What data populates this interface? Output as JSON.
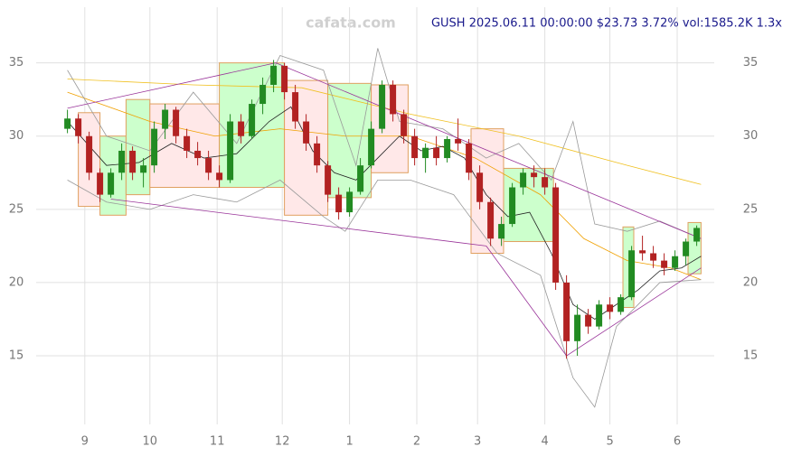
{
  "chart_data": {
    "type": "candlestick",
    "title": "GUSH 2025.06.11 00:00:00 $23.73 3.72% vol:1585.2K 1.3x",
    "watermark": "cafata.com",
    "xlim": [
      -12,
      288
    ],
    "ylim": [
      9.7,
      38.8
    ],
    "yticks": [
      15,
      20,
      25,
      30,
      35
    ],
    "xticks": [
      {
        "value": 0,
        "label": "9"
      },
      {
        "value": 30,
        "label": "10"
      },
      {
        "value": 61,
        "label": "11"
      },
      {
        "value": 91,
        "label": "12"
      },
      {
        "value": 122,
        "label": "1"
      },
      {
        "value": 153,
        "label": "2"
      },
      {
        "value": 181,
        "label": "3"
      },
      {
        "value": 212,
        "label": "4"
      },
      {
        "value": 242,
        "label": "5"
      },
      {
        "value": 273,
        "label": "6"
      }
    ],
    "grid": true,
    "up_color": "#228b22",
    "down_color": "#b22222",
    "candles": {
      "x": [
        -8,
        -3,
        2,
        7,
        12,
        17,
        22,
        27,
        32,
        37,
        42,
        47,
        52,
        57,
        62,
        67,
        72,
        77,
        82,
        87,
        92,
        97,
        102,
        107,
        112,
        117,
        122,
        127,
        132,
        137,
        142,
        147,
        152,
        157,
        162,
        167,
        172,
        177,
        182,
        187,
        192,
        197,
        202,
        207,
        212,
        217,
        222,
        227,
        232,
        237,
        242,
        247,
        252,
        257,
        262,
        267,
        272,
        277,
        282
      ],
      "open": [
        30.5,
        31.2,
        30.0,
        27.5,
        26.0,
        27.5,
        29.0,
        27.5,
        28.0,
        30.5,
        31.8,
        30.0,
        29.0,
        28.5,
        27.5,
        27.0,
        31.0,
        30.0,
        32.2,
        33.5,
        34.8,
        33.0,
        31.0,
        29.5,
        28.0,
        26.0,
        24.8,
        26.2,
        28.0,
        30.5,
        33.5,
        31.5,
        30.0,
        28.5,
        29.2,
        28.5,
        29.8,
        29.5,
        27.5,
        25.5,
        23.0,
        24.0,
        26.5,
        27.5,
        27.2,
        26.5,
        20.0,
        16.0,
        17.8,
        17.0,
        18.5,
        18.0,
        19.0,
        22.2,
        22.0,
        21.5,
        21.0,
        21.8,
        22.8
      ],
      "high": [
        31.8,
        31.5,
        30.3,
        27.8,
        27.8,
        29.5,
        29.3,
        28.5,
        31.0,
        32.2,
        32.0,
        30.5,
        29.6,
        29.0,
        28.0,
        31.5,
        31.5,
        32.5,
        34.0,
        35.2,
        35.0,
        33.5,
        31.5,
        30.0,
        28.3,
        26.5,
        26.5,
        28.5,
        31.0,
        33.8,
        33.8,
        31.8,
        30.5,
        29.5,
        30.0,
        30.0,
        31.2,
        29.8,
        28.0,
        25.8,
        24.5,
        26.8,
        27.8,
        28.0,
        27.8,
        26.8,
        20.5,
        18.5,
        18.2,
        18.8,
        19.0,
        19.2,
        22.5,
        23.2,
        22.5,
        22.0,
        22.2,
        23.0,
        23.9
      ],
      "low": [
        30.2,
        29.5,
        27.0,
        25.5,
        25.8,
        27.0,
        27.0,
        26.5,
        27.5,
        29.8,
        29.5,
        28.5,
        28.0,
        27.0,
        26.5,
        26.8,
        29.5,
        29.8,
        31.5,
        33.0,
        32.5,
        30.5,
        29.0,
        27.5,
        25.5,
        24.3,
        24.5,
        26.0,
        27.8,
        30.2,
        31.0,
        29.5,
        28.0,
        27.5,
        28.0,
        28.2,
        29.0,
        27.0,
        25.0,
        22.5,
        22.5,
        23.8,
        26.0,
        26.5,
        26.0,
        19.5,
        14.8,
        15.0,
        16.5,
        16.8,
        17.5,
        17.8,
        18.8,
        21.5,
        21.0,
        20.5,
        20.8,
        21.2,
        22.5
      ],
      "close": [
        31.2,
        30.0,
        27.5,
        26.0,
        27.5,
        29.0,
        27.5,
        28.0,
        30.5,
        31.8,
        30.0,
        29.0,
        28.5,
        27.5,
        27.0,
        31.0,
        30.0,
        32.2,
        33.5,
        34.8,
        33.0,
        31.0,
        29.5,
        28.0,
        26.0,
        24.8,
        26.2,
        28.0,
        30.5,
        33.5,
        31.5,
        30.0,
        28.5,
        29.2,
        28.5,
        29.8,
        29.5,
        27.5,
        25.5,
        23.0,
        24.0,
        26.5,
        27.5,
        27.2,
        26.5,
        20.0,
        16.0,
        17.8,
        17.0,
        18.5,
        18.0,
        19.0,
        22.2,
        22.0,
        21.5,
        21.0,
        21.8,
        22.8,
        23.73
      ]
    },
    "lines": [
      {
        "color": "#f0c020",
        "x": [
          -8,
          50,
          100,
          150,
          200,
          250,
          284
        ],
        "values": [
          33.9,
          33.5,
          33.3,
          31.5,
          30,
          28,
          26.7
        ]
      },
      {
        "color": "#f0a000",
        "x": [
          -8,
          30,
          60,
          90,
          120,
          150,
          180,
          210,
          230,
          250,
          270,
          284
        ],
        "values": [
          33,
          31,
          30,
          30.5,
          30,
          30,
          28.5,
          26,
          23,
          21.5,
          21,
          20.2
        ]
      },
      {
        "color": "#999999",
        "x": [
          -8,
          10,
          30,
          50,
          70,
          90,
          110,
          125,
          135,
          145,
          165,
          185,
          200,
          215,
          225,
          235,
          250,
          265,
          284
        ],
        "values": [
          34.5,
          30,
          29,
          33,
          29.5,
          35.5,
          34.5,
          28,
          36,
          31,
          30.5,
          28.5,
          29.5,
          27,
          31,
          24,
          23.5,
          24.2,
          23
        ]
      },
      {
        "color": "#999999",
        "x": [
          -8,
          10,
          30,
          50,
          70,
          90,
          110,
          120,
          135,
          150,
          170,
          190,
          210,
          225,
          235,
          245,
          265,
          284
        ],
        "values": [
          27,
          25.5,
          25,
          26,
          25.5,
          27,
          24.5,
          23.5,
          27,
          27,
          26,
          22,
          20.5,
          13.5,
          11.5,
          17,
          20,
          20.2
        ]
      },
      {
        "color": "#222222",
        "x": [
          -8,
          10,
          25,
          40,
          55,
          70,
          85,
          95,
          105,
          115,
          125,
          135,
          145,
          155,
          165,
          175,
          185,
          195,
          205,
          215,
          225,
          235,
          245,
          255,
          265,
          275,
          284
        ],
        "values": [
          31,
          28,
          28.2,
          29.5,
          28.5,
          28.8,
          31,
          32,
          29,
          27.5,
          27,
          28.5,
          30,
          29,
          29.3,
          28.5,
          26,
          24.5,
          24.8,
          22,
          18.5,
          17.5,
          18.5,
          19.5,
          20.8,
          21,
          21.8
        ]
      }
    ],
    "trendlines": [
      {
        "x": [
          -8,
          88
        ],
        "y": [
          31.9,
          35.0
        ]
      },
      {
        "x": [
          88,
          284
        ],
        "y": [
          35.0,
          23.0
        ]
      },
      {
        "x": [
          12,
          185
        ],
        "y": [
          25.7,
          22.5
        ]
      },
      {
        "x": [
          185,
          222
        ],
        "y": [
          22.5,
          15.0
        ]
      },
      {
        "x": [
          222,
          284
        ],
        "y": [
          15.0,
          21.0
        ]
      }
    ],
    "trend_color": "#993399",
    "boxes": [
      {
        "x": [
          -3,
          7
        ],
        "y": [
          25.2,
          31.6
        ],
        "color": "#ffe8e8"
      },
      {
        "x": [
          7,
          19
        ],
        "y": [
          24.6,
          30.0
        ],
        "color": "#ccffcc"
      },
      {
        "x": [
          19,
          30
        ],
        "y": [
          26.0,
          32.5
        ],
        "color": "#ccffcc"
      },
      {
        "x": [
          30,
          62
        ],
        "y": [
          26.5,
          32.2
        ],
        "color": "#ffe8e8"
      },
      {
        "x": [
          62,
          92
        ],
        "y": [
          26.5,
          35.0
        ],
        "color": "#ccffcc"
      },
      {
        "x": [
          92,
          112
        ],
        "y": [
          24.6,
          33.8
        ],
        "color": "#ffe8e8"
      },
      {
        "x": [
          112,
          132
        ],
        "y": [
          25.8,
          33.6
        ],
        "color": "#ccffcc"
      },
      {
        "x": [
          132,
          149
        ],
        "y": [
          27.5,
          33.5
        ],
        "color": "#ffe8e8"
      },
      {
        "x": [
          178,
          193
        ],
        "y": [
          22.0,
          30.5
        ],
        "color": "#ffe8e8"
      },
      {
        "x": [
          193,
          216
        ],
        "y": [
          22.8,
          27.8
        ],
        "color": "#ccffcc"
      },
      {
        "x": [
          248,
          253
        ],
        "y": [
          18.3,
          23.8
        ],
        "color": "#ccffcc"
      },
      {
        "x": [
          278,
          284
        ],
        "y": [
          20.6,
          24.1
        ],
        "color": "#ccffcc"
      }
    ],
    "box_stroke": "#e0a060"
  }
}
